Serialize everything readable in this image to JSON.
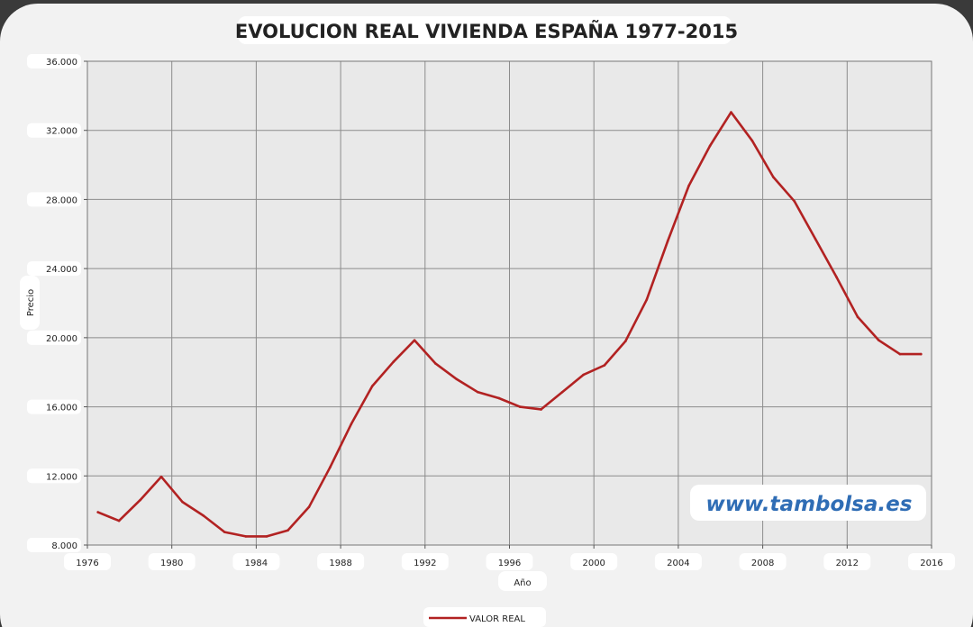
{
  "chart_data": {
    "type": "line",
    "title": "EVOLUCION REAL VIVIENDA ESPAÑA 1977-2015",
    "xlabel": "Año",
    "ylabel": "Precio",
    "xlim": [
      1976,
      2016
    ],
    "ylim": [
      8000,
      36000
    ],
    "x_ticks": [
      1976,
      1980,
      1984,
      1988,
      1992,
      1996,
      2000,
      2004,
      2008,
      2012,
      2016
    ],
    "x_tick_labels": [
      "1976",
      "1980",
      "1984",
      "1988",
      "1992",
      "1996",
      "2000",
      "2004",
      "2008",
      "2012",
      "2016"
    ],
    "y_ticks": [
      8000,
      12000,
      16000,
      20000,
      24000,
      28000,
      32000,
      36000
    ],
    "y_tick_labels": [
      "8.000",
      "12.000",
      "16.000",
      "20.000",
      "24.000",
      "28.000",
      "32.000",
      "36.000"
    ],
    "grid": true,
    "legend_position": "bottom",
    "series": [
      {
        "name": "VALOR REAL",
        "color": "#b22222",
        "x": [
          1976.5,
          1977.5,
          1978.5,
          1979.5,
          1980.5,
          1981.5,
          1982.5,
          1983.5,
          1984.5,
          1985.5,
          1986.5,
          1987.5,
          1988.5,
          1989.5,
          1990.5,
          1991.5,
          1992.5,
          1993.5,
          1994.5,
          1995.5,
          1996.5,
          1997.5,
          1998.5,
          1999.5,
          2000.5,
          2001.5,
          2002.5,
          2003.5,
          2004.5,
          2005.5,
          2006.5,
          2007.5,
          2008.5,
          2009.5,
          2010.5,
          2011.5,
          2012.5,
          2013.5,
          2014.5,
          2015.5
        ],
        "values": [
          9900,
          9400,
          10600,
          11950,
          10500,
          9700,
          8750,
          8500,
          8500,
          8850,
          10200,
          12500,
          15000,
          17200,
          18600,
          19850,
          18500,
          17600,
          16850,
          16500,
          16000,
          15850,
          16850,
          17850,
          18400,
          19800,
          22200,
          25600,
          28800,
          31100,
          33050,
          31400,
          29300,
          27900,
          25700,
          23500,
          21200,
          19850,
          19050,
          19050
        ]
      }
    ]
  },
  "watermark": "www.tambolsa.es",
  "colors": {
    "background": "#3a3a3a",
    "frame": "#f2f2f2",
    "plot_area": "#e9e9e9",
    "grid": "#8c8c8c",
    "line": "#b22222",
    "watermark": "#2f6db5"
  }
}
